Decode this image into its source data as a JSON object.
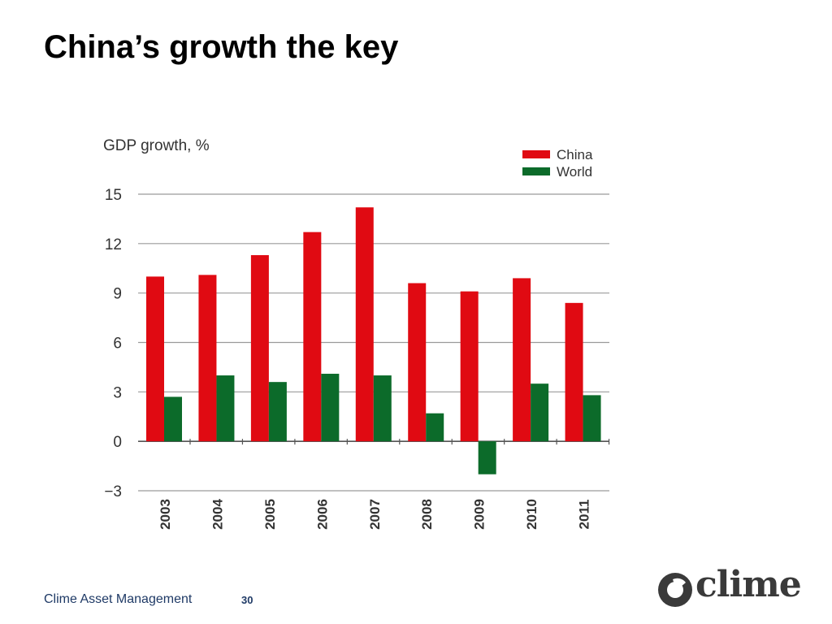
{
  "slide": {
    "title": "China’s growth the key"
  },
  "footer": {
    "company": "Clime Asset Management",
    "page_number": "30"
  },
  "logo": {
    "text": "clime",
    "icon": "clime-logo-mark"
  },
  "colors": {
    "china": "#e00a12",
    "world": "#0c6b2a",
    "grid": "#9a9a9a",
    "axis_text": "#333333"
  },
  "chart_data": {
    "type": "bar",
    "title": "GDP growth, %",
    "categories": [
      "2003",
      "2004",
      "2005",
      "2006",
      "2007",
      "2008",
      "2009",
      "2010",
      "2011"
    ],
    "series": [
      {
        "name": "China",
        "values": [
          10.0,
          10.1,
          11.3,
          12.7,
          14.2,
          9.6,
          9.1,
          9.9,
          8.4
        ]
      },
      {
        "name": "World",
        "values": [
          2.7,
          4.0,
          3.6,
          4.1,
          4.0,
          1.7,
          -2.0,
          3.5,
          2.8
        ]
      }
    ],
    "yticks": [
      -3,
      0,
      3,
      6,
      9,
      12,
      15
    ],
    "ylim": [
      -3,
      15
    ],
    "legend_position": "top-right",
    "grid": true
  }
}
